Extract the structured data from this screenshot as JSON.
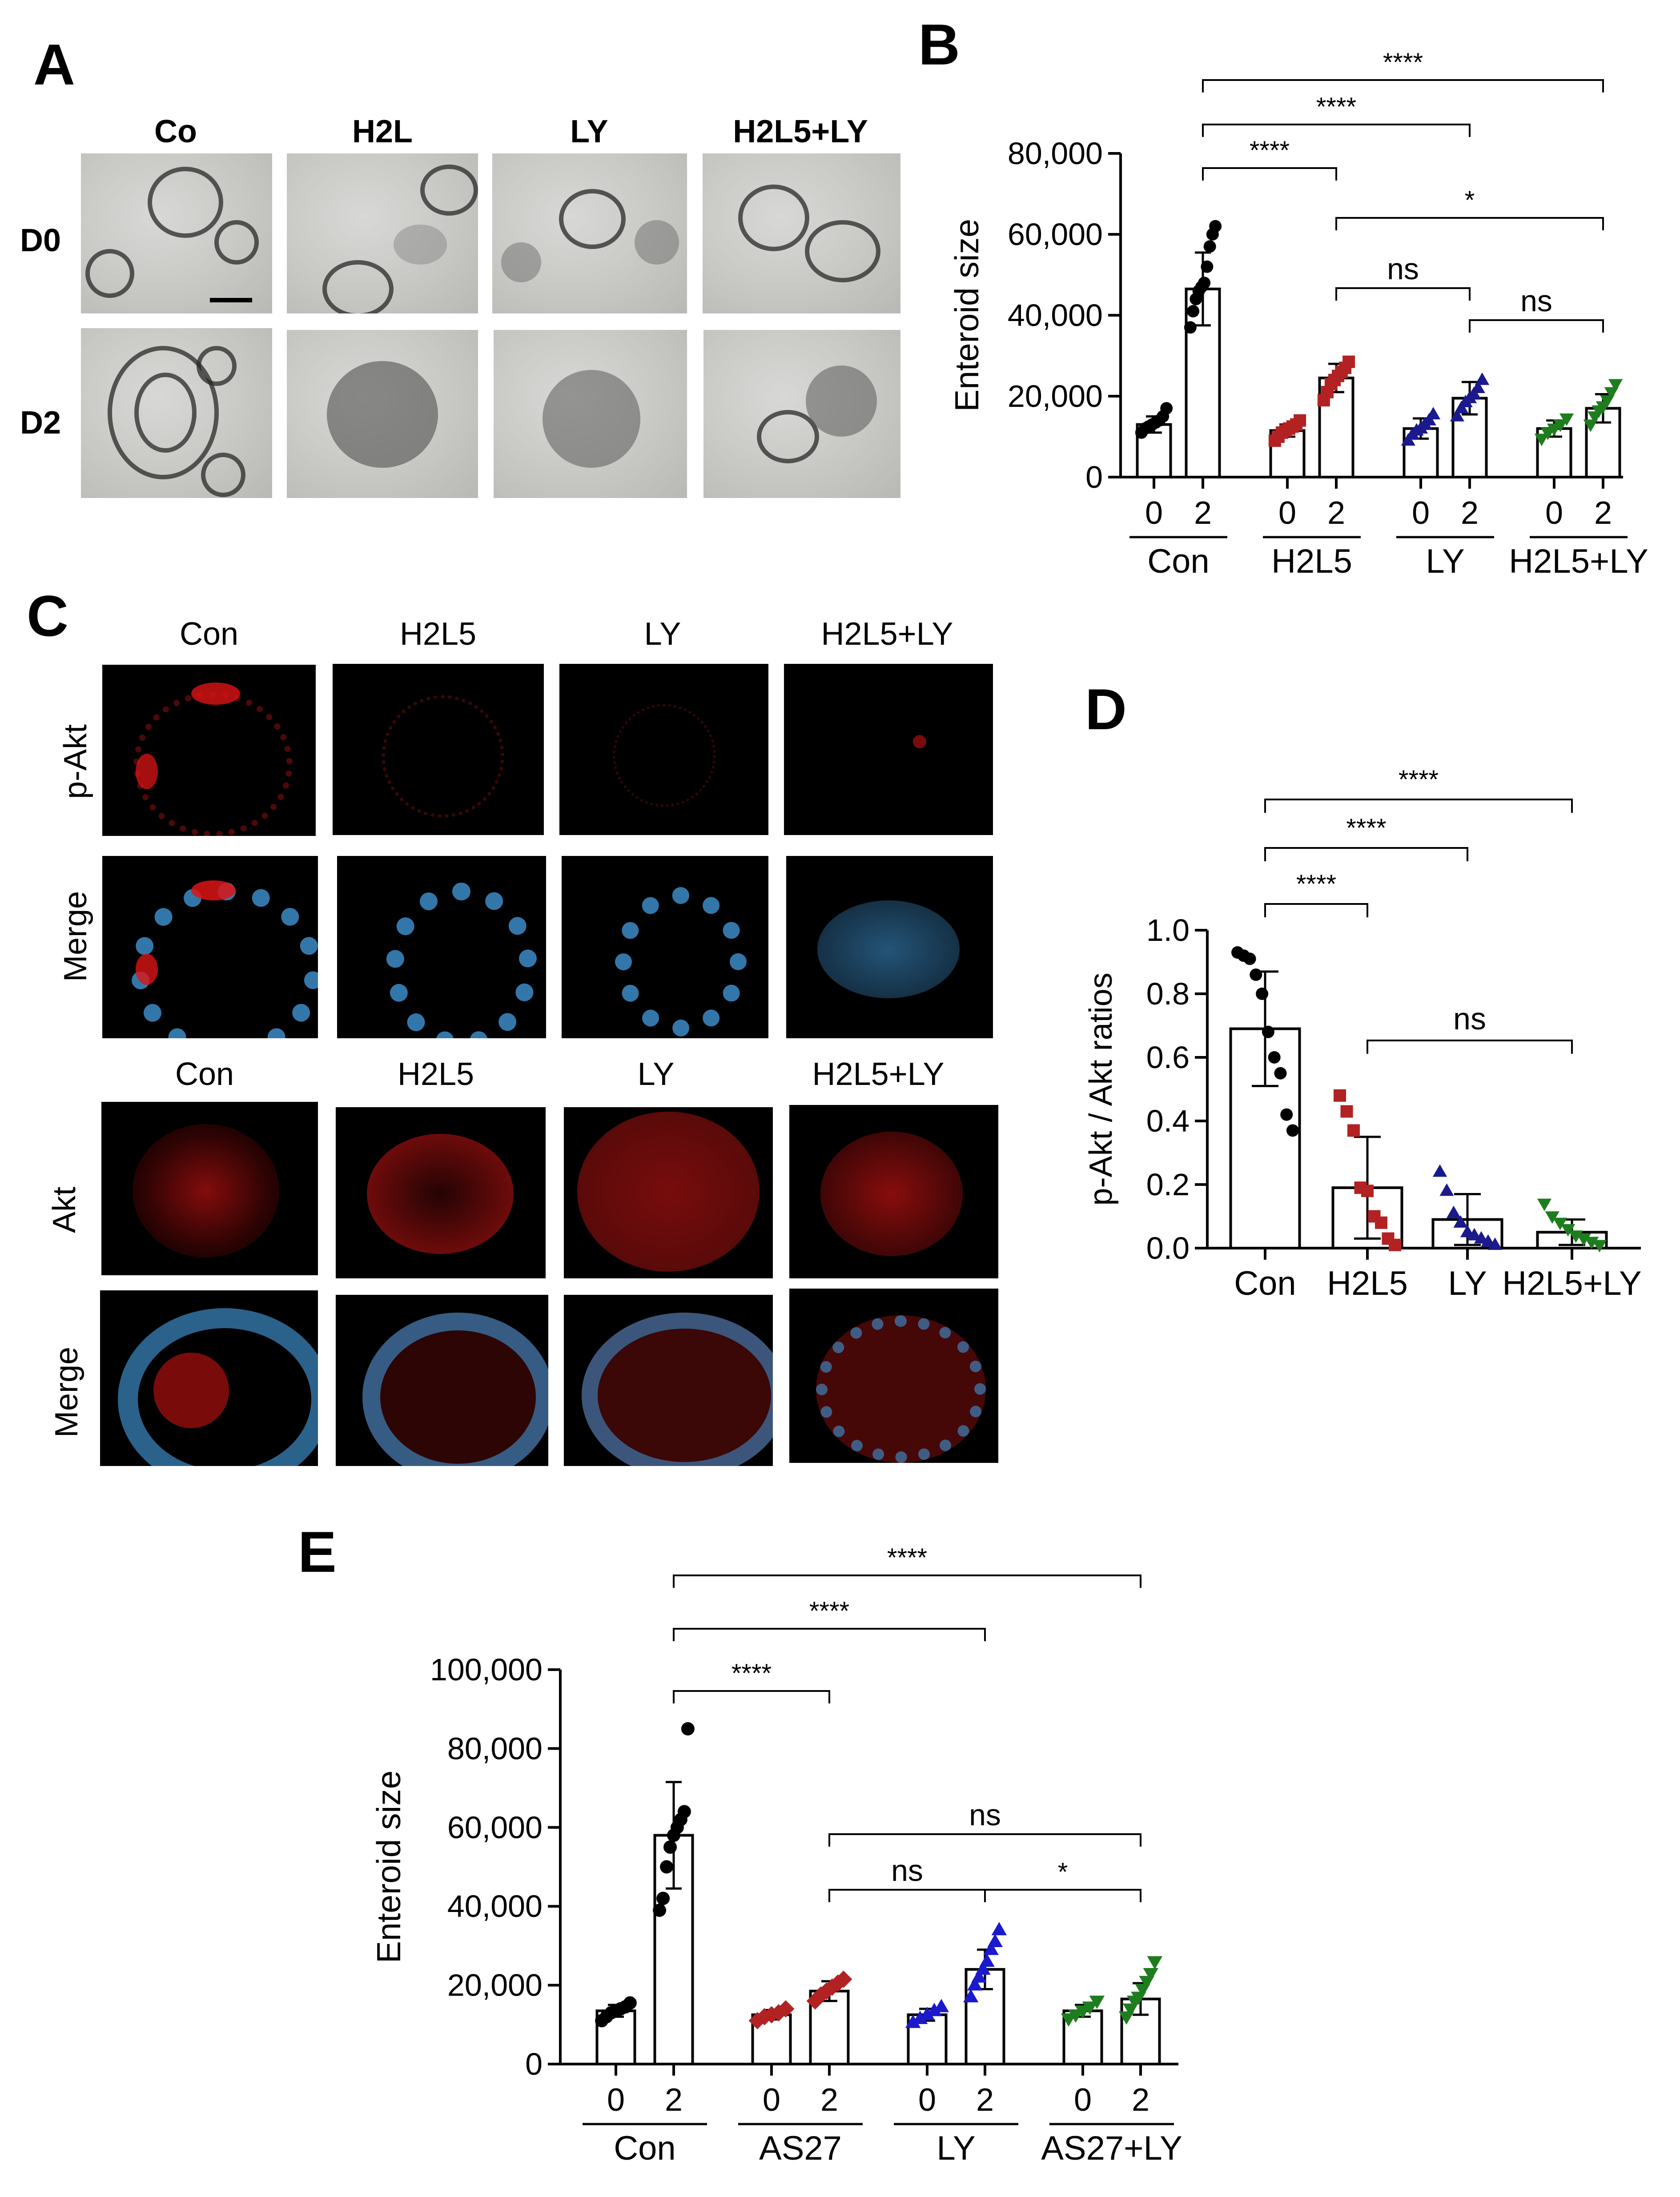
{
  "panels": {
    "a": {
      "label": "A",
      "columns": [
        "Co",
        "H2L",
        "LY",
        "H2L5+LY"
      ],
      "rows": [
        "D0",
        "D2"
      ]
    },
    "c": {
      "label": "C",
      "columns_top": [
        "Con",
        "H2L5",
        "LY",
        "H2L5+LY"
      ],
      "rows_top": [
        "p-Akt",
        "Merge"
      ],
      "columns_bottom": [
        "Con",
        "H2L5",
        "LY",
        "H2L5+LY"
      ],
      "rows_bottom": [
        "Akt",
        "Merge"
      ]
    }
  },
  "chart_data": [
    {
      "panel": "B",
      "type": "bar",
      "ylabel": "Enteroid size",
      "ylim": [
        0,
        80000
      ],
      "yticks": [
        "0",
        "20,000",
        "40,000",
        "60,000",
        "80,000"
      ],
      "groups": [
        "Con",
        "H2L5",
        "LY",
        "H2L5+LY"
      ],
      "days": [
        "0",
        "2"
      ],
      "series": [
        {
          "group": "Con",
          "color": "#000000",
          "marker": "circle",
          "means": [
            13000,
            46500
          ],
          "sd": [
            2000,
            9000
          ],
          "points": [
            [
              11000,
              12000,
              12500,
              13000,
              13500,
              14000,
              15000,
              17000
            ],
            [
              37000,
              41000,
              44000,
              46000,
              47000,
              48000,
              52000,
              57000,
              60000,
              62000
            ]
          ]
        },
        {
          "group": "H2L5",
          "color": "#b22222",
          "marker": "square",
          "means": [
            11500,
            24500
          ],
          "sd": [
            1500,
            3500
          ],
          "points": [
            [
              9000,
              10000,
              11000,
              11500,
              12000,
              12500,
              13000,
              14000
            ],
            [
              19000,
              21000,
              23000,
              24000,
              25000,
              26000,
              27000,
              28500
            ]
          ]
        },
        {
          "group": "LY",
          "color": "#1a1a8c",
          "marker": "triangle-up",
          "means": [
            12000,
            19500
          ],
          "sd": [
            2500,
            4000
          ],
          "points": [
            [
              9000,
              10500,
              11500,
              12000,
              13000,
              14000,
              15500
            ],
            [
              15000,
              17000,
              18500,
              19500,
              20500,
              22000,
              24000
            ]
          ]
        },
        {
          "group": "H2L5+LY",
          "color": "#1e7d1e",
          "marker": "triangle-down",
          "means": [
            12000,
            17000
          ],
          "sd": [
            2000,
            3500
          ],
          "points": [
            [
              9500,
              11000,
              12000,
              13000,
              14500
            ],
            [
              13000,
              15000,
              16500,
              17500,
              19000,
              21000,
              23000
            ]
          ]
        }
      ],
      "significance": [
        {
          "from": "Con 2",
          "to": "H2L5 2",
          "label": "****"
        },
        {
          "from": "Con 2",
          "to": "LY 2",
          "label": "****"
        },
        {
          "from": "Con 2",
          "to": "H2L5+LY 2",
          "label": "****"
        },
        {
          "from": "H2L5 2",
          "to": "H2L5+LY 2",
          "label": "*"
        },
        {
          "from": "H2L5 2",
          "to": "LY 2",
          "label": "ns"
        },
        {
          "from": "LY 2",
          "to": "H2L5+LY 2",
          "label": "ns"
        }
      ]
    },
    {
      "panel": "D",
      "type": "bar",
      "ylabel": "p-Akt / Akt ratios",
      "ylim": [
        0,
        1.0
      ],
      "yticks": [
        "0.0",
        "0.2",
        "0.4",
        "0.6",
        "0.8",
        "1.0"
      ],
      "categories": [
        "Con",
        "H2L5",
        "LY",
        "H2L5+LY"
      ],
      "colors": [
        "#000000",
        "#b22222",
        "#1a1a8c",
        "#1e7d1e"
      ],
      "markers": [
        "circle",
        "square",
        "triangle-up",
        "triangle-down"
      ],
      "values": [
        0.69,
        0.19,
        0.09,
        0.05
      ],
      "sd": [
        0.18,
        0.16,
        0.08,
        0.04
      ],
      "points": [
        [
          0.93,
          0.92,
          0.91,
          0.86,
          0.8,
          0.68,
          0.6,
          0.55,
          0.42,
          0.37
        ],
        [
          0.48,
          0.43,
          0.37,
          0.19,
          0.18,
          0.1,
          0.08,
          0.03,
          0.01
        ],
        [
          0.24,
          0.18,
          0.11,
          0.08,
          0.05,
          0.04,
          0.03,
          0.02,
          0.01
        ],
        [
          0.14,
          0.1,
          0.08,
          0.06,
          0.04,
          0.03,
          0.02,
          0.01
        ]
      ],
      "significance": [
        {
          "from": "Con",
          "to": "H2L5",
          "label": "****"
        },
        {
          "from": "Con",
          "to": "LY",
          "label": "****"
        },
        {
          "from": "Con",
          "to": "H2L5+LY",
          "label": "****"
        },
        {
          "from": "H2L5",
          "to": "H2L5+LY",
          "label": "ns"
        }
      ]
    },
    {
      "panel": "E",
      "type": "bar",
      "ylabel": "Enteroid size",
      "ylim": [
        0,
        100000
      ],
      "yticks": [
        "0",
        "20,000",
        "40,000",
        "60,000",
        "80,000",
        "100,000"
      ],
      "groups": [
        "Con",
        "AS27",
        "LY",
        "AS27+LY"
      ],
      "days": [
        "0",
        "2"
      ],
      "series": [
        {
          "group": "Con",
          "color": "#000000",
          "marker": "circle",
          "means": [
            13500,
            58000
          ],
          "sd": [
            1500,
            13500
          ],
          "points": [
            [
              11000,
              12000,
              13000,
              13500,
              14000,
              14500,
              15500
            ],
            [
              39000,
              42000,
              50000,
              55000,
              58000,
              60000,
              62000,
              64000,
              85000
            ]
          ]
        },
        {
          "group": "AS27",
          "color": "#b22222",
          "marker": "diamond",
          "means": [
            12500,
            18500
          ],
          "sd": [
            1200,
            2500
          ],
          "points": [
            [
              11000,
              12000,
              12500,
              13000,
              14000
            ],
            [
              16000,
              17500,
              18500,
              19500,
              20500,
              21500
            ]
          ]
        },
        {
          "group": "LY",
          "color": "#1a1acc",
          "marker": "triangle-up",
          "means": [
            12500,
            24000
          ],
          "sd": [
            1500,
            5000
          ],
          "points": [
            [
              10500,
              11500,
              12500,
              13500,
              14500
            ],
            [
              17000,
              20000,
              22000,
              24000,
              26000,
              29000,
              31000,
              34000
            ]
          ]
        },
        {
          "group": "AS27+LY",
          "color": "#1e7d1e",
          "marker": "triangle-down",
          "means": [
            13500,
            16500
          ],
          "sd": [
            1500,
            4000
          ],
          "points": [
            [
              11500,
              12500,
              13500,
              14500,
              16000
            ],
            [
              12000,
              14000,
              16000,
              17000,
              19000,
              21000,
              23000,
              26000
            ]
          ]
        }
      ],
      "significance": [
        {
          "from": "Con 2",
          "to": "AS27 2",
          "label": "****"
        },
        {
          "from": "Con 2",
          "to": "LY 2",
          "label": "****"
        },
        {
          "from": "Con 2",
          "to": "AS27+LY 2",
          "label": "****"
        },
        {
          "from": "AS27 2",
          "to": "AS27+LY 2",
          "label": "ns"
        },
        {
          "from": "AS27 2",
          "to": "LY 2",
          "label": "ns"
        },
        {
          "from": "LY 2",
          "to": "AS27+LY 2",
          "label": "*"
        }
      ]
    }
  ]
}
